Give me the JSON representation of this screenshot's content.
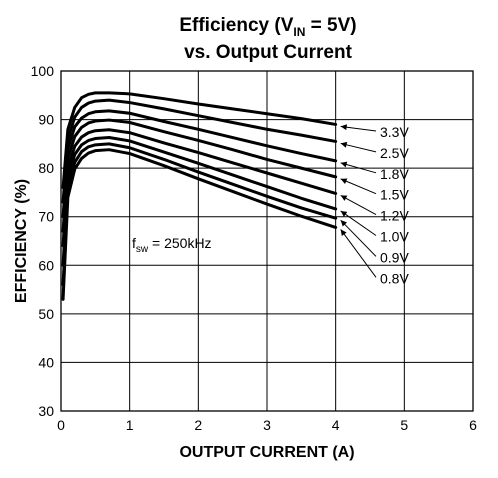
{
  "title": {
    "line1_prefix": "Efficiency (V",
    "line1_sub": "IN",
    "line1_suffix": " = 5V)",
    "line2": "vs. Output Current"
  },
  "chart_data": {
    "type": "line",
    "xlabel": "OUTPUT CURRENT (A)",
    "ylabel": "EFFICIENCY (%)",
    "xlim": [
      0,
      6
    ],
    "ylim": [
      30,
      100
    ],
    "xticks": [
      0,
      1,
      2,
      3,
      4,
      5,
      6
    ],
    "yticks": [
      30,
      40,
      50,
      60,
      70,
      80,
      90,
      100
    ],
    "grid": true,
    "annotation": {
      "base": "f",
      "sub": "sw",
      "value": " = 250kHz"
    },
    "series": [
      {
        "name": "3.3V",
        "x": [
          0.03,
          0.1,
          0.2,
          0.3,
          0.4,
          0.5,
          0.7,
          1.0,
          1.5,
          2.0,
          2.5,
          3.0,
          3.5,
          4.0
        ],
        "y": [
          76,
          88,
          92.5,
          94.5,
          95.2,
          95.5,
          95.5,
          95.3,
          94.3,
          93.2,
          92.2,
          91.2,
          90.2,
          89.0
        ]
      },
      {
        "name": "2.5V",
        "x": [
          0.03,
          0.1,
          0.2,
          0.3,
          0.4,
          0.5,
          0.7,
          1.0,
          1.5,
          2.0,
          2.5,
          3.0,
          3.5,
          4.0
        ],
        "y": [
          73,
          86,
          90.5,
          92.5,
          93.4,
          93.8,
          94.0,
          93.5,
          92.2,
          90.8,
          89.4,
          88.0,
          86.8,
          85.5
        ]
      },
      {
        "name": "1.8V",
        "x": [
          0.03,
          0.1,
          0.2,
          0.3,
          0.4,
          0.5,
          0.7,
          1.0,
          1.5,
          2.0,
          2.5,
          3.0,
          3.5,
          4.0
        ],
        "y": [
          70,
          84,
          88.5,
          90.3,
          91.2,
          91.6,
          91.8,
          91.3,
          89.6,
          88.0,
          86.3,
          84.6,
          83.0,
          81.5
        ]
      },
      {
        "name": "1.5V",
        "x": [
          0.03,
          0.1,
          0.2,
          0.3,
          0.4,
          0.5,
          0.7,
          1.0,
          1.5,
          2.0,
          2.5,
          3.0,
          3.5,
          4.0
        ],
        "y": [
          67,
          82,
          86.5,
          88.4,
          89.3,
          89.7,
          89.9,
          89.4,
          87.5,
          85.7,
          83.8,
          81.8,
          80.0,
          78.2
        ]
      },
      {
        "name": "1.2V",
        "x": [
          0.03,
          0.1,
          0.2,
          0.3,
          0.4,
          0.5,
          0.7,
          1.0,
          1.5,
          2.0,
          2.5,
          3.0,
          3.5,
          4.0
        ],
        "y": [
          64,
          80,
          84.5,
          86.4,
          87.3,
          87.7,
          87.9,
          87.3,
          85.2,
          83.2,
          81.1,
          79.0,
          76.9,
          74.8
        ]
      },
      {
        "name": "1.0V",
        "x": [
          0.03,
          0.1,
          0.2,
          0.3,
          0.4,
          0.5,
          0.7,
          1.0,
          1.5,
          2.0,
          2.5,
          3.0,
          3.5,
          4.0
        ],
        "y": [
          60,
          78,
          82.8,
          84.8,
          85.7,
          86.1,
          86.3,
          85.6,
          83.3,
          81.0,
          78.6,
          76.2,
          73.8,
          71.6
        ]
      },
      {
        "name": "0.9V",
        "x": [
          0.03,
          0.1,
          0.2,
          0.3,
          0.4,
          0.5,
          0.7,
          1.0,
          1.5,
          2.0,
          2.5,
          3.0,
          3.5,
          4.0
        ],
        "y": [
          56,
          76,
          81.2,
          83.4,
          84.4,
          84.8,
          85.0,
          84.2,
          81.8,
          79.2,
          76.7,
          74.2,
          71.8,
          69.7
        ]
      },
      {
        "name": "0.8V",
        "x": [
          0.03,
          0.1,
          0.2,
          0.3,
          0.4,
          0.5,
          0.7,
          1.0,
          1.5,
          2.0,
          2.5,
          3.0,
          3.5,
          4.0
        ],
        "y": [
          53,
          74,
          79.8,
          82.0,
          83.1,
          83.6,
          83.8,
          83.0,
          80.5,
          77.8,
          75.2,
          72.6,
          70.1,
          67.8
        ]
      }
    ]
  }
}
